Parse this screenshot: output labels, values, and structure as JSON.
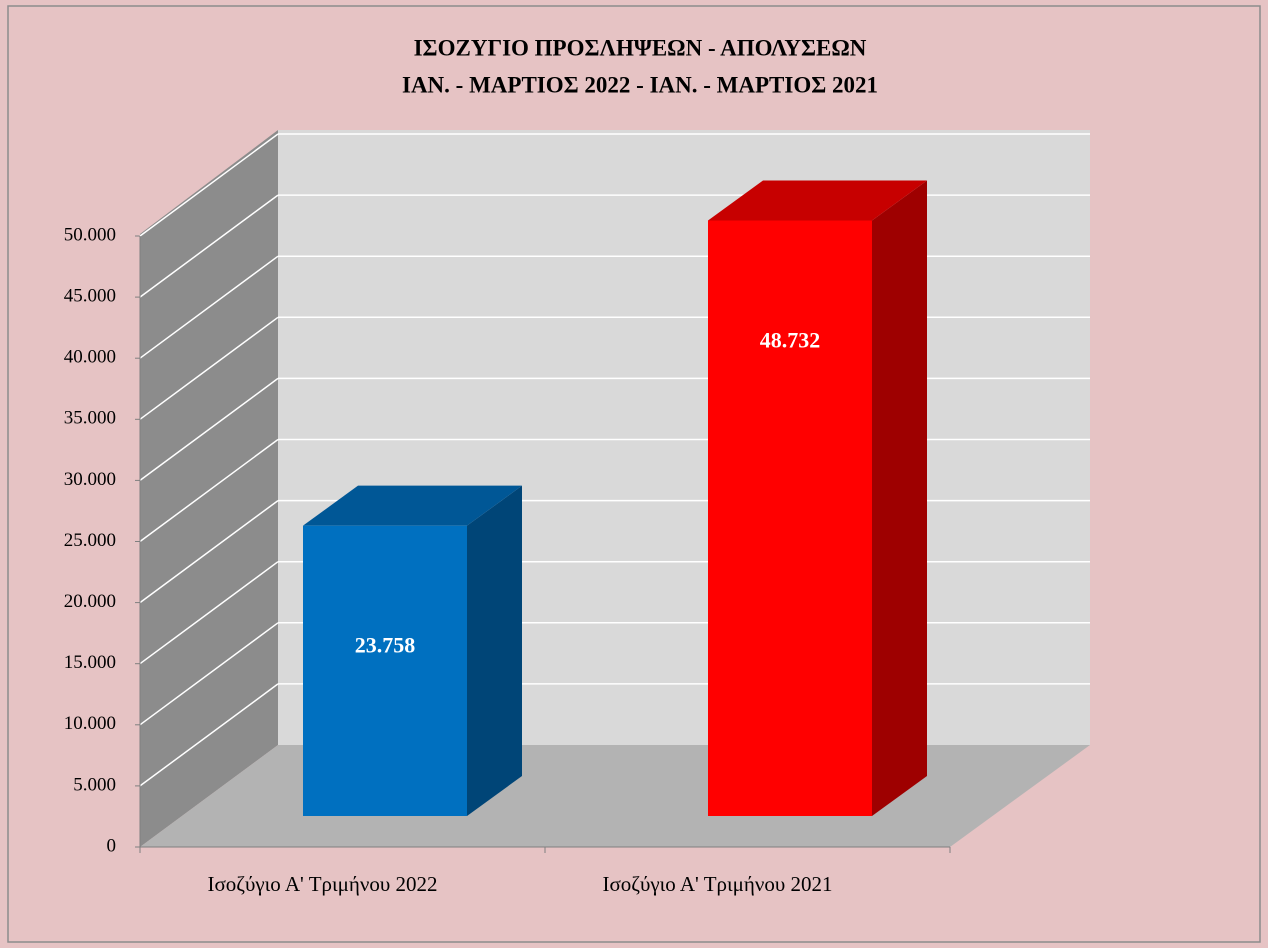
{
  "chart_data": {
    "type": "bar3d",
    "title": "ΙΣΟΖΥΓΙΟ  ΠΡΟΣΛΗΨΕΩΝ  -  ΑΠΟΛΥΣΕΩΝ",
    "subtitle": "ΙΑΝ. - ΜΑΡΤΙΟΣ 2022  -  ΙΑΝ. - ΜΑΡΤΙΟΣ 2021",
    "categories": [
      "Ισοζύγιο Α' Τριμήνου 2022",
      "Ισοζύγιο Α' Τριμήνου 2021"
    ],
    "values": [
      23758,
      48732
    ],
    "value_labels": [
      "23.758",
      "48.732"
    ],
    "colors": [
      "#0070c0",
      "#ff0000"
    ],
    "ylim": [
      0,
      50000
    ],
    "yticks": [
      0,
      {
        "value": 5000,
        "label": "5.000"
      },
      {
        "value": 10000,
        "label": "10.000"
      },
      {
        "value": 15000,
        "label": "15.000"
      },
      {
        "value": 20000,
        "label": "20.000"
      },
      {
        "value": 25000,
        "label": "25.000"
      },
      {
        "value": 30000,
        "label": "30.000"
      },
      {
        "value": 35000,
        "label": "35.000"
      },
      {
        "value": 40000,
        "label": "40.000"
      },
      {
        "value": 45000,
        "label": "45.000"
      },
      {
        "value": 50000,
        "label": "50.000"
      }
    ],
    "grid": true
  }
}
